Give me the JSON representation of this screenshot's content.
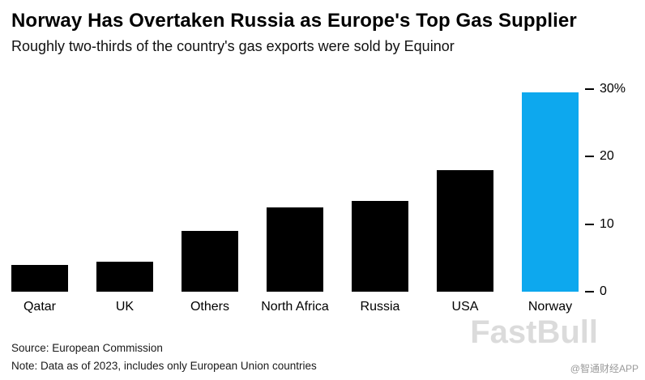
{
  "chart_data": {
    "type": "bar",
    "title": "Norway Has Overtaken Russia as Europe's Top Gas Supplier",
    "subtitle": "Roughly two-thirds of the country's gas exports were sold by Equinor",
    "categories": [
      "Qatar",
      "UK",
      "Others",
      "North Africa",
      "Russia",
      "USA",
      "Norway"
    ],
    "values": [
      4,
      4.5,
      9,
      12.5,
      13.5,
      18,
      29.5
    ],
    "unit": "%",
    "ylim": [
      0,
      30
    ],
    "yticks": [
      {
        "value": 0,
        "label": "0"
      },
      {
        "value": 10,
        "label": "10"
      },
      {
        "value": 20,
        "label": "20"
      },
      {
        "value": 30,
        "label": "30%"
      }
    ],
    "bar_color": "#000000",
    "highlight_category": "Norway",
    "highlight_color": "#0da8ee",
    "grid": false,
    "legend": "none",
    "y_axis_position": "right"
  },
  "footer": {
    "source": "Source: European Commission",
    "note": "Note: Data as of 2023, includes only European Union countries"
  },
  "watermarks": {
    "fastbull": "FastBull",
    "app": "@智通财经APP"
  }
}
